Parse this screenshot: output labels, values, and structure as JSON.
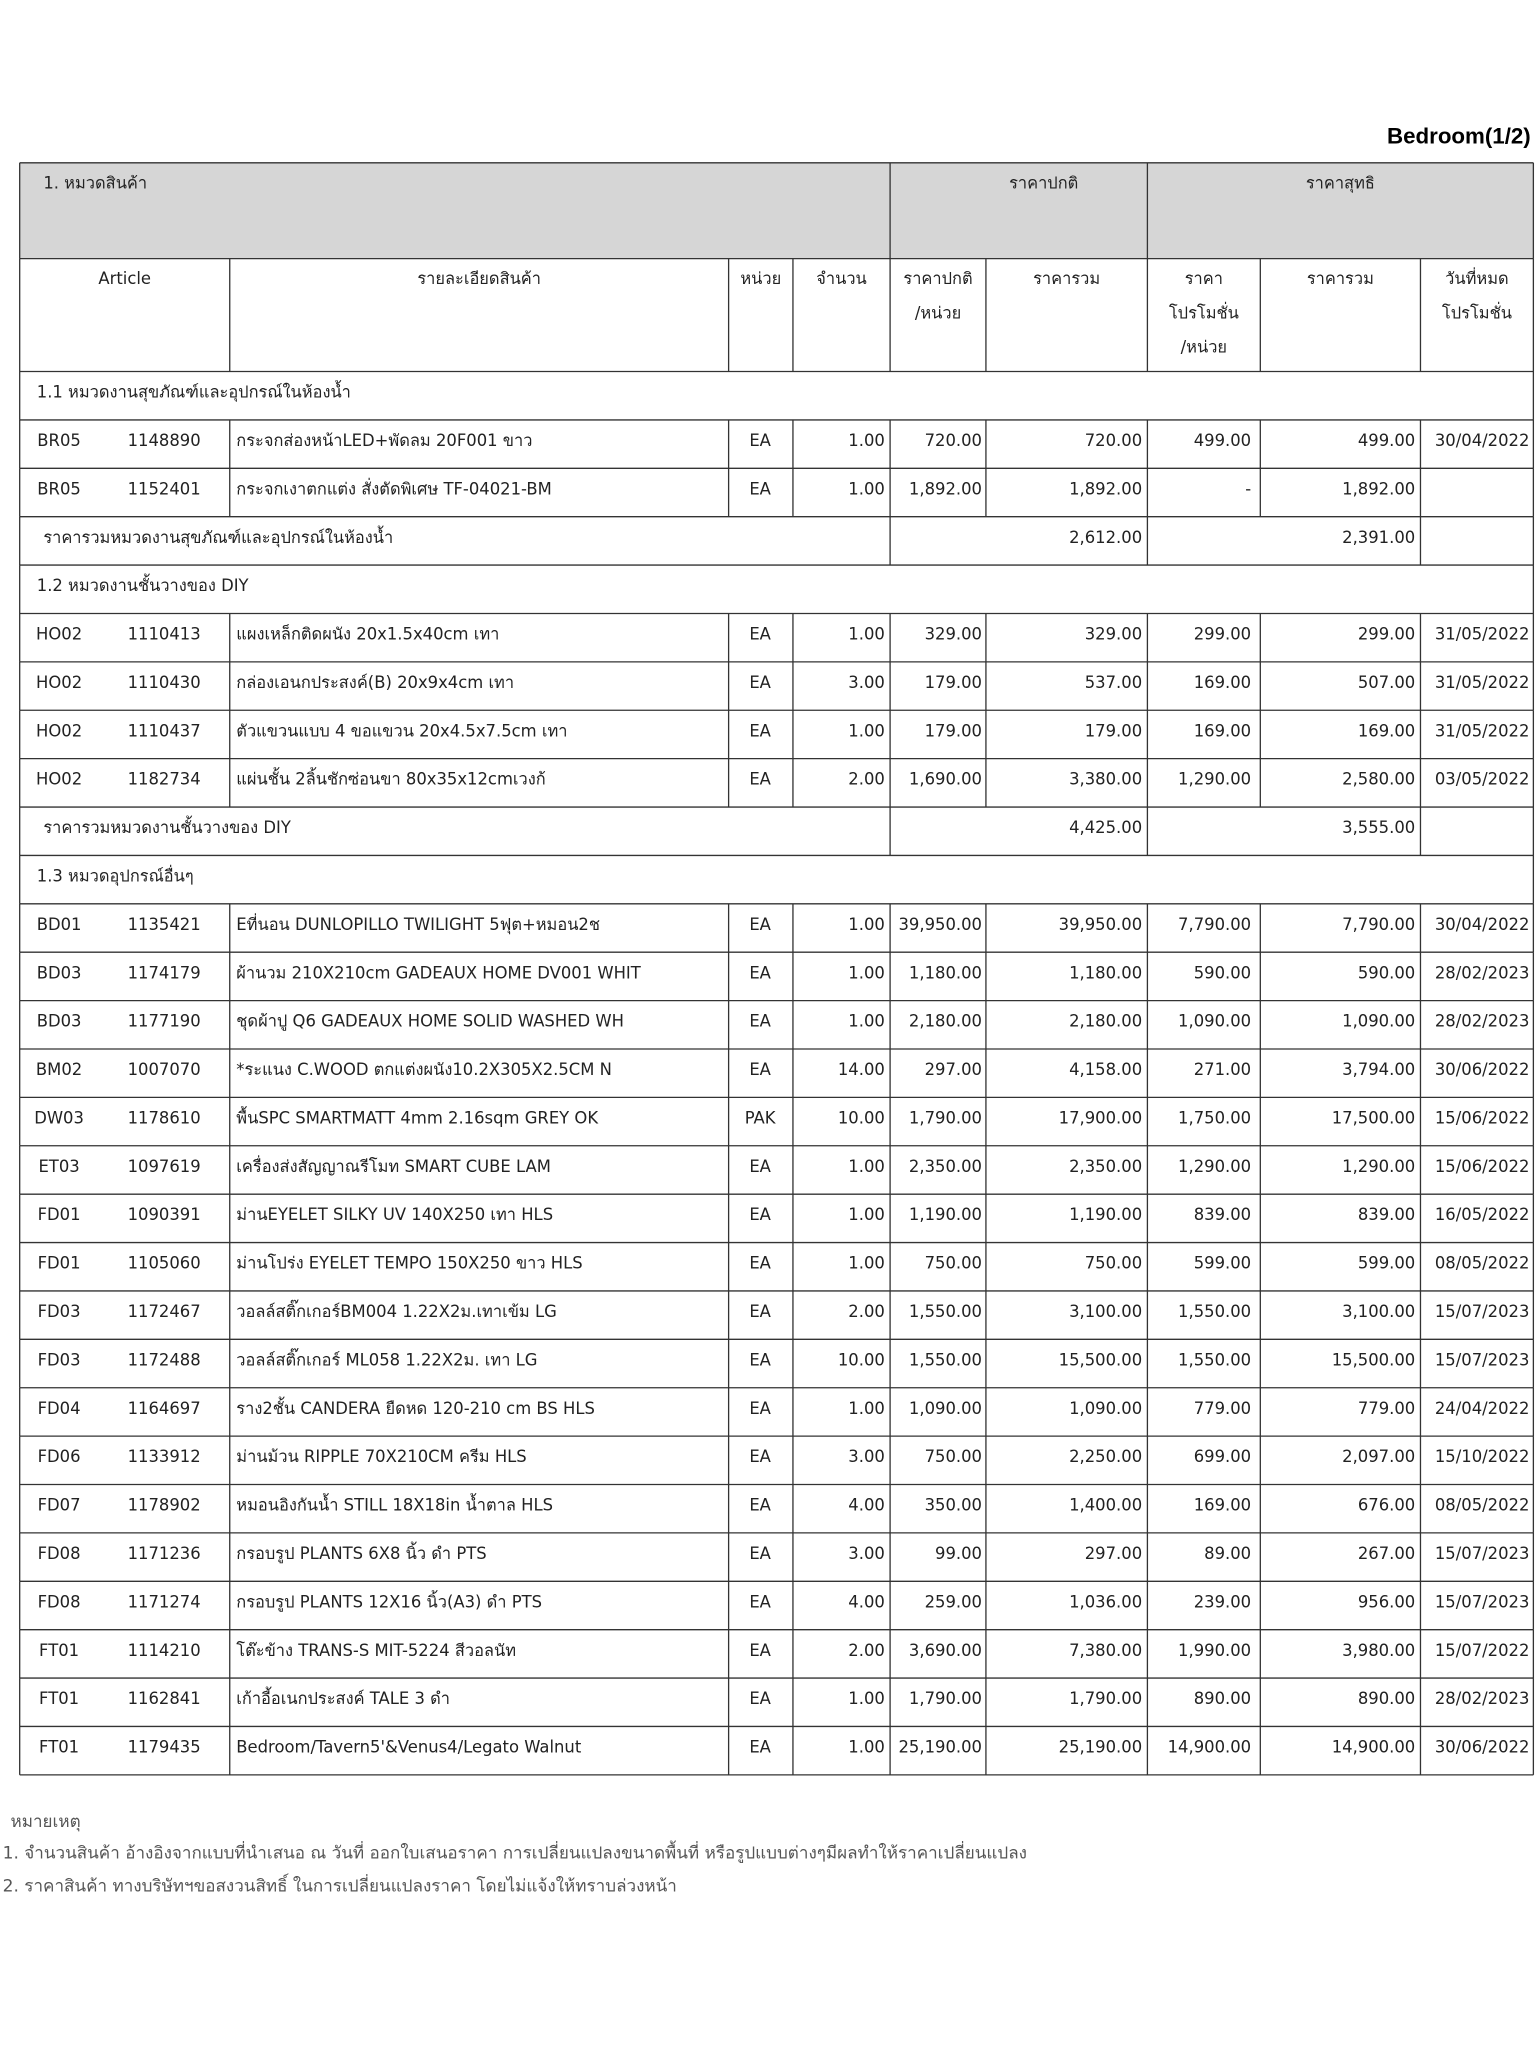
{
  "header": {
    "page_label": "Bedroom(1/2)"
  },
  "table": {
    "group_header": [
      "1. หมวดสินค้า",
      "ราคาปกติ",
      "ราคาสุทธิ"
    ],
    "columns": [
      [
        "Article"
      ],
      [
        "รายละเอียดสินค้า"
      ],
      [
        "หน่วย"
      ],
      [
        "จำนวน"
      ],
      [
        "ราคาปกติ",
        "/หน่วย"
      ],
      [
        "ราคารวม"
      ],
      [
        "ราคา",
        "โปรโมชั่น",
        "/หน่วย"
      ],
      [
        "ราคารวม"
      ],
      [
        "วันที่หมด",
        "โปรโมชั่น"
      ]
    ],
    "sections": [
      {
        "title": "1.1 หมวดงานสุขภัณฑ์และอุปกรณ์ในห้องน้ำ",
        "rows": [
          [
            "BR05",
            "1148890",
            "กระจกส่องหน้าLED+พัดลม 20F001 ขาว",
            "EA",
            "1.00",
            "720.00",
            "720.00",
            "499.00",
            "499.00",
            "30/04/2022"
          ],
          [
            "BR05",
            "1152401",
            "กระจกเงาตกแต่ง สั่งตัดพิเศษ TF-04021-BM",
            "EA",
            "1.00",
            "1,892.00",
            "1,892.00",
            "-",
            "1,892.00",
            null
          ]
        ],
        "subtotal": {
          "label": "ราคารวมหมวดงานสุขภัณฑ์และอุปกรณ์ในห้องน้ำ",
          "normal_total": "2,612.00",
          "net_total": "2,391.00"
        }
      },
      {
        "title": "1.2 หมวดงานชั้นวางของ DIY",
        "rows": [
          [
            "HO02",
            "1110413",
            "แผงเหล็กติดผนัง 20x1.5x40cm เทา",
            "EA",
            "1.00",
            "329.00",
            "329.00",
            "299.00",
            "299.00",
            "31/05/2022"
          ],
          [
            "HO02",
            "1110430",
            "กล่องเอนกประสงค์(B) 20x9x4cm เทา",
            "EA",
            "3.00",
            "179.00",
            "537.00",
            "169.00",
            "507.00",
            "31/05/2022"
          ],
          [
            "HO02",
            "1110437",
            "ตัวแขวนแบบ 4  ขอแขวน 20x4.5x7.5cm เทา",
            "EA",
            "1.00",
            "179.00",
            "179.00",
            "169.00",
            "169.00",
            "31/05/2022"
          ],
          [
            "HO02",
            "1182734",
            "แผ่นชั้น 2ลิ้นชักซ่อนขา 80x35x12cmเวงก้",
            "EA",
            "2.00",
            "1,690.00",
            "3,380.00",
            "1,290.00",
            "2,580.00",
            "03/05/2022"
          ]
        ],
        "subtotal": {
          "label": "ราคารวมหมวดงานชั้นวางของ DIY",
          "normal_total": "4,425.00",
          "net_total": "3,555.00"
        }
      },
      {
        "title": "1.3 หมวดอุปกรณ์อื่นๆ",
        "rows": [
          [
            "BD01",
            "1135421",
            "Eที่นอน DUNLOPILLO TWILIGHT 5ฟุต+หมอน2ช",
            "EA",
            "1.00",
            "39,950.00",
            "39,950.00",
            "7,790.00",
            "7,790.00",
            "30/04/2022"
          ],
          [
            "BD03",
            "1174179",
            "ผ้านวม 210X210cm GADEAUX HOME DV001 WHIT",
            "EA",
            "1.00",
            "1,180.00",
            "1,180.00",
            "590.00",
            "590.00",
            "28/02/2023"
          ],
          [
            "BD03",
            "1177190",
            "ชุดผ้าปู Q6 GADEAUX HOME SOLID WASHED WH",
            "EA",
            "1.00",
            "2,180.00",
            "2,180.00",
            "1,090.00",
            "1,090.00",
            "28/02/2023"
          ],
          [
            "BM02",
            "1007070",
            "*ระแนง C.WOOD ตกแต่งผนัง10.2X305X2.5CM N",
            "EA",
            "14.00",
            "297.00",
            "4,158.00",
            "271.00",
            "3,794.00",
            "30/06/2022"
          ],
          [
            "DW03",
            "1178610",
            "พื้นSPC SMARTMATT 4mm 2.16sqm GREY OK",
            "PAK",
            "10.00",
            "1,790.00",
            "17,900.00",
            "1,750.00",
            "17,500.00",
            "15/06/2022"
          ],
          [
            "ET03",
            "1097619",
            "เครื่องส่งสัญญาณรีโมท SMART CUBE LAM",
            "EA",
            "1.00",
            "2,350.00",
            "2,350.00",
            "1,290.00",
            "1,290.00",
            "15/06/2022"
          ],
          [
            "FD01",
            "1090391",
            "ม่านEYELET SILKY UV 140X250 เทา HLS",
            "EA",
            "1.00",
            "1,190.00",
            "1,190.00",
            "839.00",
            "839.00",
            "16/05/2022"
          ],
          [
            "FD01",
            "1105060",
            "ม่านโปร่ง EYELET TEMPO 150X250 ขาว HLS",
            "EA",
            "1.00",
            "750.00",
            "750.00",
            "599.00",
            "599.00",
            "08/05/2022"
          ],
          [
            "FD03",
            "1172467",
            "วอลล์สติ๊กเกอร์BM004 1.22X2ม.เทาเข้ม LG",
            "EA",
            "2.00",
            "1,550.00",
            "3,100.00",
            "1,550.00",
            "3,100.00",
            "15/07/2023"
          ],
          [
            "FD03",
            "1172488",
            "วอลล์สติ๊กเกอร์ ML058 1.22X2ม. เทา LG",
            "EA",
            "10.00",
            "1,550.00",
            "15,500.00",
            "1,550.00",
            "15,500.00",
            "15/07/2023"
          ],
          [
            "FD04",
            "1164697",
            "ราง2ชั้น CANDERA ยืดหด 120-210 cm BS HLS",
            "EA",
            "1.00",
            "1,090.00",
            "1,090.00",
            "779.00",
            "779.00",
            "24/04/2022"
          ],
          [
            "FD06",
            "1133912",
            "ม่านม้วน RIPPLE 70X210CM ครีม HLS",
            "EA",
            "3.00",
            "750.00",
            "2,250.00",
            "699.00",
            "2,097.00",
            "15/10/2022"
          ],
          [
            "FD07",
            "1178902",
            "หมอนอิงกันน้ำ STILL 18X18in น้ำตาล HLS",
            "EA",
            "4.00",
            "350.00",
            "1,400.00",
            "169.00",
            "676.00",
            "08/05/2022"
          ],
          [
            "FD08",
            "1171236",
            "กรอบรูป PLANTS 6X8 นิ้ว ดำ PTS",
            "EA",
            "3.00",
            "99.00",
            "297.00",
            "89.00",
            "267.00",
            "15/07/2023"
          ],
          [
            "FD08",
            "1171274",
            "กรอบรูป PLANTS 12X16 นิ้ว(A3) ดำ PTS",
            "EA",
            "4.00",
            "259.00",
            "1,036.00",
            "239.00",
            "956.00",
            "15/07/2023"
          ],
          [
            "FT01",
            "1114210",
            "โต๊ะข้าง TRANS-S MIT-5224 สีวอลนัท",
            "EA",
            "2.00",
            "3,690.00",
            "7,380.00",
            "1,990.00",
            "3,980.00",
            "15/07/2022"
          ],
          [
            "FT01",
            "1162841",
            "เก้าอี้อเนกประสงค์ TALE 3  ดำ",
            "EA",
            "1.00",
            "1,790.00",
            "1,790.00",
            "890.00",
            "890.00",
            "28/02/2023"
          ],
          [
            "FT01",
            "1179435",
            "Bedroom/Tavern5'&Venus4/Legato Walnut",
            "EA",
            "1.00",
            "25,190.00",
            "25,190.00",
            "14,900.00",
            "14,900.00",
            "30/06/2022"
          ]
        ]
      }
    ]
  },
  "notes": {
    "title": "หมายเหตุ",
    "items": [
      "1. จำนวนสินค้า อ้างอิงจากแบบที่นำเสนอ ณ วันที่ ออกใบเสนอราคา การเปลี่ยนแปลงขนาดพื้นที่ หรือรูปแบบต่างๆมีผลทำให้ราคาเปลี่ยนแปลง",
      "2. ราคาสินค้า ทางบริษัทฯขอสงวนสิทธิ์ ในการเปลี่ยนแปลงราคา โดยไม่แจ้งให้ทราบล่วงหน้า"
    ]
  }
}
